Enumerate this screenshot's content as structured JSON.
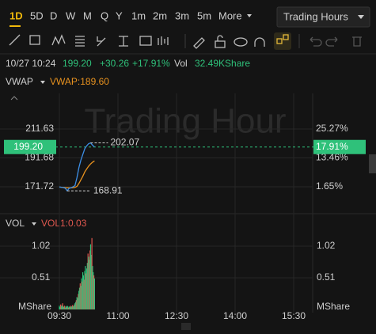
{
  "toolbar": {
    "periods": [
      "1D",
      "5D",
      "D",
      "W",
      "M",
      "Q",
      "Y",
      "1m",
      "2m",
      "3m",
      "5m"
    ],
    "more": "More",
    "session": "Trading Hours"
  },
  "quote": {
    "time": "10/27 10:24",
    "price": "199.20",
    "change": "+30.26",
    "change_pct": "+17.91%",
    "vol_label": "Vol",
    "volume": "32.49KShare"
  },
  "indicator": {
    "name": "VWAP",
    "value_label": "VWAP:189.60"
  },
  "watermark": "Trading Hour",
  "price_chart": {
    "yticks": [
      171.72,
      191.68,
      211.63
    ],
    "pct_ticks": [
      "1.65%",
      "13.46%",
      "25.27%"
    ],
    "current": {
      "value": 199.2,
      "label": "199.20"
    },
    "current_pct": "17.91%",
    "high": {
      "value": 202.07,
      "label": "202.07"
    },
    "low": {
      "value": 168.91,
      "label": "168.91"
    },
    "price": [
      171.6,
      171.4,
      171.2,
      170.8,
      168.91,
      170.6,
      171.0,
      171.8,
      172.5,
      178,
      185,
      190,
      194,
      198,
      200,
      201.5,
      202.07,
      200.5,
      199.2
    ],
    "vwap": [
      171.5,
      171.4,
      171.3,
      171.2,
      171.0,
      171.0,
      171.0,
      171.1,
      171.3,
      172,
      174,
      176.5,
      179,
      182,
      184,
      186,
      187.5,
      188.7,
      189.6
    ]
  },
  "volume_panel": {
    "name": "VOL",
    "value_label": "VOL1:0.03",
    "yticks": [
      0.51,
      1.02
    ],
    "unit": "MShare",
    "values": [
      0.06,
      0.04,
      0.08,
      0.05,
      0.07,
      0.1,
      0.05,
      0.04,
      0.06,
      0.03,
      0.05,
      0.04,
      0.06,
      0.05,
      0.03,
      0.04,
      0.05,
      0.06,
      0.04,
      0.05,
      0.07,
      0.05,
      0.06,
      0.08,
      0.1,
      0.12,
      0.15,
      0.2,
      0.18,
      0.25,
      0.3,
      0.35,
      0.42,
      0.38,
      0.5,
      0.45,
      0.6,
      0.55,
      0.48,
      0.62,
      0.7,
      0.58,
      0.66,
      0.75,
      0.9,
      0.85,
      0.8,
      0.95,
      1.05,
      0.88,
      1.15,
      0.7,
      0.6,
      0.55,
      0.5
    ]
  },
  "time_axis": [
    "09:30",
    "11:00",
    "12:30",
    "14:00",
    "15:30"
  ]
}
